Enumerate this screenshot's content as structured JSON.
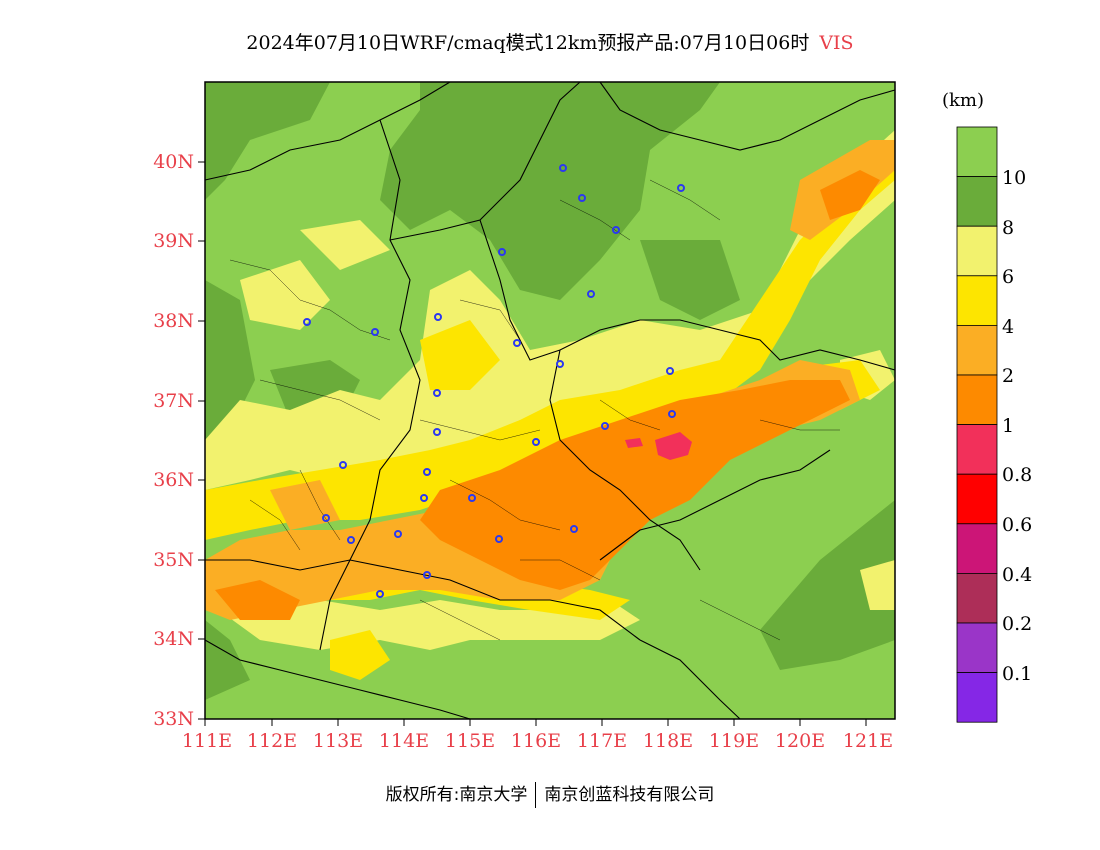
{
  "title": {
    "main": "2024年07月10日WRF/cmaq模式12km预报产品:07月10日06时",
    "variable": "VIS"
  },
  "map": {
    "lat_labels": [
      "40N",
      "39N",
      "38N",
      "37N",
      "36N",
      "35N",
      "34N",
      "33N"
    ],
    "lon_labels": [
      "111E",
      "112E",
      "113E",
      "114E",
      "115E",
      "116E",
      "117E",
      "118E",
      "119E",
      "120E",
      "121E"
    ],
    "lat_range": [
      33,
      41
    ],
    "lon_range": [
      111,
      121.4
    ]
  },
  "legend": {
    "unit": "(km)",
    "levels": [
      {
        "label": "10",
        "color": "#8ccf50"
      },
      {
        "label": "8",
        "color": "#6aac3a"
      },
      {
        "label": "6",
        "color": "#f2f26e"
      },
      {
        "label": "4",
        "color": "#fde500"
      },
      {
        "label": "2",
        "color": "#fbae24"
      },
      {
        "label": "1",
        "color": "#fd8a00"
      },
      {
        "label": "0.8",
        "color": "#f2305a"
      },
      {
        "label": "0.6",
        "color": "#ff0000"
      },
      {
        "label": "0.4",
        "color": "#cc1577"
      },
      {
        "label": "0.2",
        "color": "#ad2e58"
      },
      {
        "label": "0.1",
        "color": "#9a35c8"
      },
      {
        "label": "",
        "color": "#8527e6"
      }
    ],
    "top_color": "#8ccf50"
  },
  "footer": {
    "left": "版权所有:南京大学",
    "right": "南京创蓝科技有限公司"
  }
}
